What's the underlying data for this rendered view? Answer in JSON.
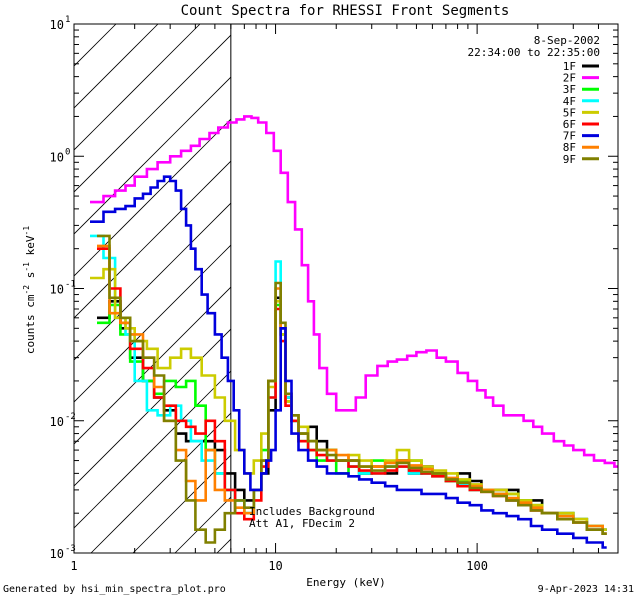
{
  "chart_data": {
    "type": "line",
    "title": "Count Spectra for RHESSI Front Segments",
    "xlabel": "Energy (keV)",
    "ylabel": "counts cm",
    "ylabel_sup1": "-2",
    "ylabel_mid": " s",
    "ylabel_sup2": "-1",
    "ylabel_end": " keV",
    "ylabel_sup3": "-1",
    "xscale": "log",
    "yscale": "log",
    "xlim": [
      1,
      500
    ],
    "ylim": [
      0.001,
      10
    ],
    "x_ticks": [
      {
        "label": "1",
        "value": 1
      },
      {
        "label": "10",
        "value": 10
      },
      {
        "label": "100",
        "value": 100
      }
    ],
    "y_ticks": [
      {
        "base": "10",
        "exp": "-3",
        "value": 0.001
      },
      {
        "base": "10",
        "exp": "-2",
        "value": 0.01
      },
      {
        "base": "10",
        "exp": "-1",
        "value": 0.1
      },
      {
        "base": "10",
        "exp": "0",
        "value": 1
      },
      {
        "base": "10",
        "exp": "1",
        "value": 10
      }
    ],
    "legend_position": "top-right",
    "date": "8-Sep-2002",
    "time_range": "22:34:00 to 22:35:00",
    "annotation_line1": "Includes Background",
    "annotation_line2": "Att A1, FDecim 2",
    "hatched_region_max_kev": 6,
    "series": [
      {
        "name": "1F",
        "color": "#000000",
        "x": [
          1.3,
          1.5,
          1.7,
          1.9,
          2.2,
          2.5,
          2.8,
          3.2,
          3.6,
          4.0,
          4.5,
          5.0,
          5.6,
          6.3,
          7.0,
          7.8,
          8.5,
          9.2,
          10.0,
          10.6,
          11.2,
          12.0,
          13.0,
          14.5,
          16,
          18,
          20,
          23,
          26,
          30,
          35,
          40,
          46,
          53,
          60,
          70,
          80,
          92,
          105,
          120,
          140,
          160,
          185,
          210,
          250,
          300,
          350,
          420
        ],
        "y": [
          0.06,
          0.08,
          0.05,
          0.03,
          0.02,
          0.015,
          0.012,
          0.008,
          0.007,
          0.007,
          0.007,
          0.006,
          0.004,
          0.003,
          0.0025,
          0.003,
          0.004,
          0.012,
          0.085,
          0.05,
          0.015,
          0.01,
          0.008,
          0.009,
          0.007,
          0.006,
          0.005,
          0.005,
          0.004,
          0.0045,
          0.004,
          0.005,
          0.004,
          0.0045,
          0.004,
          0.0035,
          0.004,
          0.0035,
          0.003,
          0.003,
          0.003,
          0.0025,
          0.0025,
          0.002,
          0.002,
          0.0018,
          0.0015,
          0.0015
        ]
      },
      {
        "name": "2F",
        "color": "#ff00ff",
        "x": [
          1.2,
          1.4,
          1.6,
          1.8,
          2.0,
          2.3,
          2.6,
          3.0,
          3.4,
          3.8,
          4.2,
          4.7,
          5.2,
          5.8,
          6.4,
          7.0,
          7.6,
          8.2,
          9.0,
          9.8,
          10.6,
          11.5,
          12.5,
          13.5,
          14.5,
          15.5,
          16.5,
          18,
          20,
          22,
          25,
          28,
          32,
          36,
          40,
          45,
          50,
          56,
          63,
          70,
          80,
          90,
          100,
          110,
          120,
          135,
          150,
          170,
          190,
          210,
          240,
          270,
          300,
          340,
          380,
          430,
          480
        ],
        "y": [
          0.45,
          0.5,
          0.55,
          0.6,
          0.7,
          0.8,
          0.9,
          1.0,
          1.1,
          1.2,
          1.35,
          1.5,
          1.65,
          1.8,
          1.9,
          2.0,
          1.95,
          1.8,
          1.5,
          1.1,
          0.75,
          0.45,
          0.28,
          0.15,
          0.08,
          0.045,
          0.025,
          0.016,
          0.012,
          0.012,
          0.015,
          0.022,
          0.026,
          0.028,
          0.029,
          0.031,
          0.033,
          0.034,
          0.03,
          0.028,
          0.023,
          0.02,
          0.017,
          0.015,
          0.013,
          0.011,
          0.011,
          0.01,
          0.009,
          0.008,
          0.007,
          0.0065,
          0.006,
          0.0055,
          0.005,
          0.0048,
          0.0045
        ]
      },
      {
        "name": "3F",
        "color": "#00ff00",
        "x": [
          1.3,
          1.5,
          1.7,
          1.9,
          2.2,
          2.5,
          2.8,
          3.2,
          3.6,
          4.0,
          4.5,
          5.0,
          5.6,
          6.3,
          7.0,
          7.8,
          8.5,
          9.2,
          10.0,
          10.6,
          11.2,
          12.0,
          13.0,
          14.5,
          16,
          18,
          20,
          23,
          26,
          30,
          35,
          40,
          46,
          53,
          60,
          70,
          80,
          92,
          105,
          120,
          140,
          160,
          185,
          210,
          250,
          300,
          350,
          420
        ],
        "y": [
          0.055,
          0.075,
          0.045,
          0.028,
          0.02,
          0.016,
          0.02,
          0.018,
          0.02,
          0.013,
          0.006,
          0.004,
          0.003,
          0.0025,
          0.002,
          0.003,
          0.006,
          0.02,
          0.075,
          0.045,
          0.014,
          0.01,
          0.007,
          0.006,
          0.005,
          0.006,
          0.004,
          0.0045,
          0.004,
          0.005,
          0.0045,
          0.005,
          0.005,
          0.004,
          0.004,
          0.0035,
          0.0035,
          0.003,
          0.003,
          0.0028,
          0.0028,
          0.0025,
          0.0023,
          0.002,
          0.002,
          0.0018,
          0.0016,
          0.0015
        ]
      },
      {
        "name": "4F",
        "color": "#00ffff",
        "x": [
          1.2,
          1.4,
          1.6,
          1.8,
          2.0,
          2.3,
          2.6,
          3.0,
          3.4,
          3.8,
          4.3,
          5.0,
          5.6,
          6.3,
          7.0,
          7.8,
          8.5,
          9.2,
          10.0,
          10.6,
          11.2,
          12.0,
          13.0,
          14.5,
          16,
          18,
          20,
          23,
          26,
          30,
          35,
          40,
          46,
          53,
          60,
          70,
          80,
          92,
          105,
          120,
          140,
          160,
          185,
          210,
          250,
          300,
          350,
          420
        ],
        "y": [
          0.25,
          0.17,
          0.06,
          0.045,
          0.02,
          0.012,
          0.011,
          0.013,
          0.01,
          0.007,
          0.005,
          0.004,
          0.003,
          0.0025,
          0.002,
          0.003,
          0.005,
          0.015,
          0.16,
          0.05,
          0.015,
          0.01,
          0.008,
          0.007,
          0.006,
          0.005,
          0.005,
          0.0045,
          0.004,
          0.004,
          0.0045,
          0.0045,
          0.004,
          0.004,
          0.0038,
          0.0036,
          0.0033,
          0.003,
          0.003,
          0.0028,
          0.0025,
          0.0024,
          0.0022,
          0.002,
          0.0019,
          0.0017,
          0.0016,
          0.0014
        ]
      },
      {
        "name": "5F",
        "color": "#cccc00",
        "x": [
          1.2,
          1.4,
          1.6,
          1.8,
          2.0,
          2.3,
          2.6,
          3.0,
          3.4,
          3.8,
          4.3,
          5.0,
          5.6,
          6.3,
          7.0,
          7.8,
          8.5,
          9.2,
          10.0,
          10.6,
          11.2,
          12.0,
          13.0,
          14.5,
          16,
          18,
          20,
          23,
          26,
          30,
          35,
          40,
          46,
          53,
          60,
          70,
          80,
          92,
          105,
          120,
          140,
          160,
          185,
          210,
          250,
          300,
          350,
          420
        ],
        "y": [
          0.12,
          0.14,
          0.06,
          0.05,
          0.04,
          0.035,
          0.025,
          0.03,
          0.035,
          0.03,
          0.022,
          0.015,
          0.01,
          0.006,
          0.004,
          0.005,
          0.008,
          0.018,
          0.08,
          0.045,
          0.014,
          0.011,
          0.009,
          0.007,
          0.006,
          0.006,
          0.005,
          0.0055,
          0.005,
          0.0045,
          0.005,
          0.006,
          0.005,
          0.0045,
          0.0042,
          0.004,
          0.0036,
          0.0033,
          0.003,
          0.003,
          0.0028,
          0.0025,
          0.0023,
          0.002,
          0.002,
          0.0018,
          0.0016,
          0.0015
        ]
      },
      {
        "name": "6F",
        "color": "#ff0000",
        "x": [
          1.3,
          1.5,
          1.7,
          1.9,
          2.2,
          2.5,
          2.8,
          3.2,
          3.6,
          4.0,
          4.5,
          5.0,
          5.6,
          6.3,
          7.0,
          7.8,
          8.5,
          9.2,
          10.0,
          10.6,
          11.2,
          12.0,
          13.0,
          14.5,
          16,
          18,
          20,
          23,
          26,
          30,
          35,
          40,
          46,
          53,
          60,
          70,
          80,
          92,
          105,
          120,
          140,
          160,
          185,
          210,
          250,
          300,
          350,
          420
        ],
        "y": [
          0.2,
          0.1,
          0.055,
          0.035,
          0.025,
          0.015,
          0.013,
          0.01,
          0.009,
          0.008,
          0.01,
          0.007,
          0.003,
          0.002,
          0.0018,
          0.0025,
          0.0045,
          0.015,
          0.07,
          0.04,
          0.013,
          0.01,
          0.007,
          0.006,
          0.0055,
          0.005,
          0.005,
          0.0045,
          0.0042,
          0.004,
          0.0042,
          0.0045,
          0.0042,
          0.004,
          0.0038,
          0.0035,
          0.0032,
          0.003,
          0.0029,
          0.0027,
          0.0025,
          0.0023,
          0.0021,
          0.002,
          0.0018,
          0.0017,
          0.0015,
          0.0014
        ]
      },
      {
        "name": "7F",
        "color": "#0000dd",
        "x": [
          1.2,
          1.4,
          1.6,
          1.8,
          2.0,
          2.2,
          2.4,
          2.6,
          2.8,
          3.0,
          3.2,
          3.4,
          3.6,
          3.8,
          4.0,
          4.3,
          4.6,
          5.0,
          5.4,
          5.8,
          6.2,
          6.6,
          7.0,
          7.5,
          8.0,
          8.5,
          9.0,
          9.5,
          10.0,
          10.6,
          11.2,
          12.0,
          13.0,
          14.5,
          16,
          18,
          20,
          23,
          26,
          30,
          35,
          40,
          46,
          53,
          60,
          70,
          80,
          92,
          105,
          120,
          140,
          160,
          185,
          210,
          250,
          300,
          350,
          420
        ],
        "y": [
          0.32,
          0.38,
          0.4,
          0.42,
          0.48,
          0.52,
          0.58,
          0.65,
          0.7,
          0.65,
          0.55,
          0.4,
          0.3,
          0.2,
          0.14,
          0.09,
          0.065,
          0.045,
          0.03,
          0.02,
          0.012,
          0.006,
          0.004,
          0.003,
          0.003,
          0.004,
          0.005,
          0.006,
          0.012,
          0.05,
          0.02,
          0.008,
          0.006,
          0.005,
          0.0045,
          0.004,
          0.004,
          0.0038,
          0.0036,
          0.0034,
          0.0032,
          0.003,
          0.003,
          0.0028,
          0.0028,
          0.0026,
          0.0024,
          0.0023,
          0.0021,
          0.002,
          0.0019,
          0.0018,
          0.0016,
          0.0015,
          0.0014,
          0.0013,
          0.0012,
          0.0011
        ]
      },
      {
        "name": "8F",
        "color": "#ff8000",
        "x": [
          1.3,
          1.5,
          1.7,
          1.9,
          2.2,
          2.5,
          2.8,
          3.2,
          3.6,
          4.0,
          4.5,
          5.0,
          5.6,
          6.3,
          7.0,
          7.8,
          8.5,
          9.2,
          10.0,
          10.6,
          11.2,
          12.0,
          13.0,
          14.5,
          16,
          18,
          20,
          23,
          26,
          30,
          35,
          40,
          46,
          53,
          60,
          70,
          80,
          92,
          105,
          120,
          140,
          160,
          185,
          210,
          250,
          300,
          350,
          420
        ],
        "y": [
          0.21,
          0.065,
          0.055,
          0.045,
          0.03,
          0.018,
          0.01,
          0.006,
          0.0035,
          0.0025,
          0.006,
          0.003,
          0.0025,
          0.0022,
          0.002,
          0.003,
          0.005,
          0.02,
          0.1,
          0.05,
          0.016,
          0.011,
          0.008,
          0.007,
          0.006,
          0.006,
          0.0055,
          0.005,
          0.0045,
          0.0045,
          0.0048,
          0.005,
          0.0046,
          0.0043,
          0.004,
          0.0037,
          0.0034,
          0.0032,
          0.003,
          0.0028,
          0.0026,
          0.0024,
          0.0022,
          0.002,
          0.0019,
          0.0017,
          0.0016,
          0.0014
        ]
      },
      {
        "name": "9F",
        "color": "#808000",
        "x": [
          1.3,
          1.5,
          1.7,
          1.9,
          2.2,
          2.5,
          2.8,
          3.2,
          3.6,
          4.0,
          4.5,
          5.0,
          5.6,
          6.3,
          7.0,
          7.8,
          8.5,
          9.2,
          10.0,
          10.6,
          11.2,
          12.0,
          13.0,
          14.5,
          16,
          18,
          20,
          23,
          26,
          30,
          35,
          40,
          46,
          53,
          60,
          70,
          80,
          92,
          105,
          120,
          140,
          160,
          185,
          210,
          250,
          300,
          350,
          420
        ],
        "y": [
          0.25,
          0.085,
          0.06,
          0.04,
          0.03,
          0.022,
          0.01,
          0.005,
          0.0025,
          0.0015,
          0.0012,
          0.0015,
          0.002,
          0.0025,
          0.0022,
          0.003,
          0.005,
          0.02,
          0.11,
          0.055,
          0.016,
          0.011,
          0.008,
          0.007,
          0.006,
          0.0055,
          0.005,
          0.005,
          0.0045,
          0.0042,
          0.0045,
          0.0048,
          0.0044,
          0.0041,
          0.004,
          0.0036,
          0.0034,
          0.0031,
          0.0029,
          0.0027,
          0.0025,
          0.0023,
          0.0021,
          0.002,
          0.0018,
          0.0017,
          0.0015,
          0.0014
        ]
      }
    ]
  },
  "footer": {
    "generator": "Generated by hsi_min_spectra_plot.pro",
    "timestamp": "9-Apr-2023 14:31"
  }
}
